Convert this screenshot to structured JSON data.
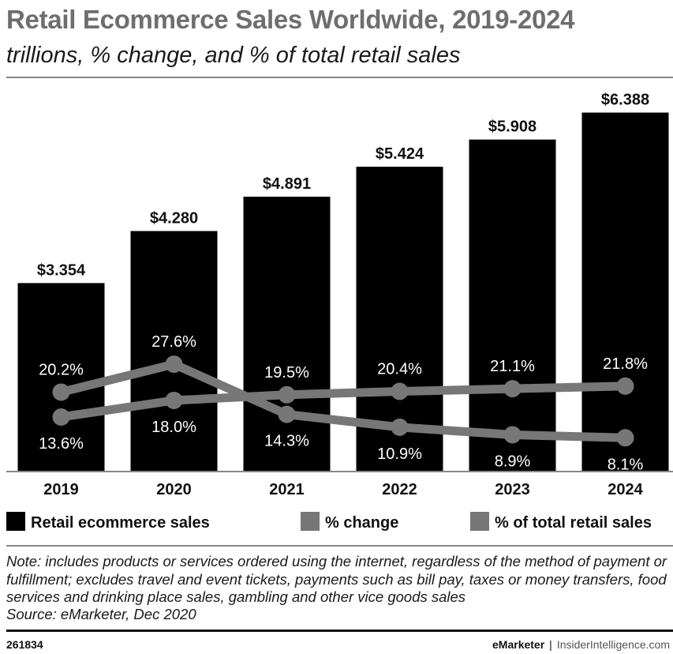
{
  "title": "Retail Ecommerce Sales Worldwide, 2019-2024",
  "subtitle": "trillions, % change, and % of total retail sales",
  "chart_data": {
    "type": "bar",
    "categories": [
      "2019",
      "2020",
      "2021",
      "2022",
      "2023",
      "2024"
    ],
    "bar_series": {
      "name": "Retail ecommerce sales",
      "values": [
        3.354,
        4.28,
        4.891,
        5.424,
        5.908,
        6.388
      ],
      "labels": [
        "$3.354",
        "$4.280",
        "$4.891",
        "$5.424",
        "$5.908",
        "$6.388"
      ],
      "color": "#000000",
      "ylim": [
        0,
        7.0
      ]
    },
    "line_series": [
      {
        "name": "% change",
        "values": [
          20.2,
          27.6,
          14.3,
          10.9,
          8.9,
          8.1
        ],
        "labels": [
          "20.2%",
          "27.6%",
          "14.3%",
          "10.9%",
          "8.9%",
          "8.1%"
        ],
        "color": "#777777"
      },
      {
        "name": "% of total retail sales",
        "values": [
          13.6,
          18.0,
          19.5,
          20.4,
          21.1,
          21.8
        ],
        "labels": [
          "13.6%",
          "18.0%",
          "19.5%",
          "20.4%",
          "21.1%",
          "21.8%"
        ],
        "color": "#777777"
      }
    ],
    "legend_position": "bottom",
    "grid": false
  },
  "legend": [
    {
      "label": "Retail ecommerce sales",
      "color": "#000000"
    },
    {
      "label": "% change",
      "color": "#777777"
    },
    {
      "label": "% of total retail sales",
      "color": "#777777"
    }
  ],
  "note": "Note: includes products or services ordered using the internet, regardless of the method of payment or fulfillment; excludes travel and event tickets, payments such as bill pay, taxes or money transfers, food services and drinking place sales, gambling and other vice goods sales",
  "source": "Source: eMarketer, Dec 2020",
  "footer": {
    "chart_id": "261834",
    "brand": "eMarketer",
    "separator": "|",
    "site": "InsiderIntelligence.com"
  }
}
